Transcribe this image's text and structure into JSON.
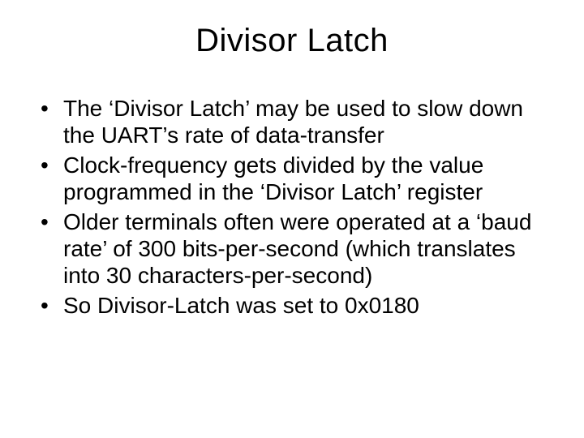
{
  "slide": {
    "title": "Divisor Latch",
    "title_fontsize": 40,
    "body_fontsize": 28,
    "text_color": "#000000",
    "background_color": "#ffffff",
    "bullets": [
      "The ‘Divisor Latch’ may be used to slow down the UART’s rate of data-transfer",
      "Clock-frequency gets divided by the value programmed in the ‘Divisor Latch’ register",
      "Older terminals often were operated at a ‘baud rate’ of 300 bits-per-second (which translates into 30 characters-per-second)",
      "So Divisor-Latch was set to 0x0180"
    ]
  }
}
